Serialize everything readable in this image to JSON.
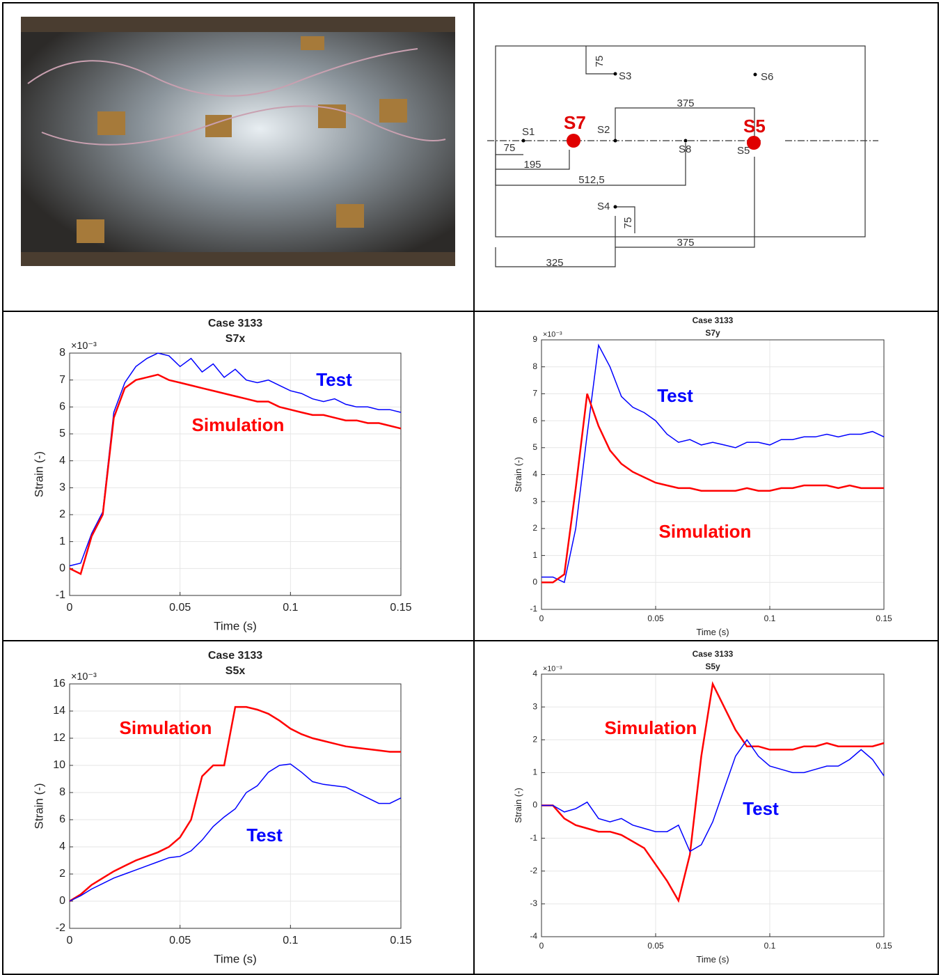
{
  "diagram": {
    "sensor_labels": [
      "S3",
      "S6",
      "S1",
      "S2",
      "S8",
      "S5",
      "S4"
    ],
    "highlighted": [
      "S7",
      "S5"
    ],
    "dimensions": [
      75,
      375,
      75,
      195,
      "512,5",
      75,
      375,
      325
    ]
  },
  "chart_data": [
    {
      "type": "line",
      "title": "Case 3133",
      "subtitle": "S7x",
      "x_label": "Time (s)",
      "y_label": "Strain (-)",
      "y_multiplier": "×10⁻³",
      "x": [
        0,
        0.005,
        0.01,
        0.015,
        0.02,
        0.025,
        0.03,
        0.035,
        0.04,
        0.045,
        0.05,
        0.055,
        0.06,
        0.065,
        0.07,
        0.075,
        0.08,
        0.085,
        0.09,
        0.095,
        0.1,
        0.105,
        0.11,
        0.115,
        0.12,
        0.125,
        0.13,
        0.135,
        0.14,
        0.145,
        0.15
      ],
      "series": [
        {
          "name": "Test",
          "color": "#0000ff",
          "values": [
            0.1,
            0.2,
            1.3,
            2.1,
            5.8,
            6.9,
            7.5,
            7.8,
            8.0,
            7.9,
            7.5,
            7.8,
            7.3,
            7.6,
            7.1,
            7.4,
            7.0,
            6.9,
            7.0,
            6.8,
            6.6,
            6.5,
            6.3,
            6.2,
            6.3,
            6.1,
            6.0,
            6.0,
            5.9,
            5.9,
            5.8
          ]
        },
        {
          "name": "Simulation",
          "color": "#ff0000",
          "values": [
            0.0,
            -0.2,
            1.2,
            2.0,
            5.6,
            6.7,
            7.0,
            7.1,
            7.2,
            7.0,
            6.9,
            6.8,
            6.7,
            6.6,
            6.5,
            6.4,
            6.3,
            6.2,
            6.2,
            6.0,
            5.9,
            5.8,
            5.7,
            5.7,
            5.6,
            5.5,
            5.5,
            5.4,
            5.4,
            5.3,
            5.2
          ]
        }
      ],
      "xlim": [
        0,
        0.15
      ],
      "xticks": [
        0,
        0.05,
        0.1,
        0.15
      ],
      "ylim": [
        -1,
        8
      ],
      "yticks": [
        -1,
        0,
        1,
        2,
        3,
        4,
        5,
        6,
        7,
        8
      ],
      "grid": true
    },
    {
      "type": "line",
      "title": "Case 3133",
      "subtitle": "S7y",
      "x_label": "Time (s)",
      "y_label": "Strain (-)",
      "y_multiplier": "×10⁻³",
      "x": [
        0,
        0.005,
        0.01,
        0.015,
        0.02,
        0.025,
        0.03,
        0.035,
        0.04,
        0.045,
        0.05,
        0.055,
        0.06,
        0.065,
        0.07,
        0.075,
        0.08,
        0.085,
        0.09,
        0.095,
        0.1,
        0.105,
        0.11,
        0.115,
        0.12,
        0.125,
        0.13,
        0.135,
        0.14,
        0.145,
        0.15
      ],
      "series": [
        {
          "name": "Test",
          "color": "#0000ff",
          "values": [
            0.2,
            0.2,
            0.0,
            2.0,
            5.5,
            8.8,
            8.0,
            6.9,
            6.5,
            6.3,
            6.0,
            5.5,
            5.2,
            5.3,
            5.1,
            5.2,
            5.1,
            5.0,
            5.2,
            5.2,
            5.1,
            5.3,
            5.3,
            5.4,
            5.4,
            5.5,
            5.4,
            5.5,
            5.5,
            5.6,
            5.4
          ]
        },
        {
          "name": "Simulation",
          "color": "#ff0000",
          "values": [
            0.0,
            0.0,
            0.3,
            3.5,
            7.0,
            5.8,
            4.9,
            4.4,
            4.1,
            3.9,
            3.7,
            3.6,
            3.5,
            3.5,
            3.4,
            3.4,
            3.4,
            3.4,
            3.5,
            3.4,
            3.4,
            3.5,
            3.5,
            3.6,
            3.6,
            3.6,
            3.5,
            3.6,
            3.5,
            3.5,
            3.5
          ]
        }
      ],
      "xlim": [
        0,
        0.15
      ],
      "xticks": [
        0,
        0.05,
        0.1,
        0.15
      ],
      "ylim": [
        -1,
        9
      ],
      "yticks": [
        -1,
        0,
        1,
        2,
        3,
        4,
        5,
        6,
        7,
        8,
        9
      ],
      "grid": true
    },
    {
      "type": "line",
      "title": "Case 3133",
      "subtitle": "S5x",
      "x_label": "Time (s)",
      "y_label": "Strain (-)",
      "y_multiplier": "×10⁻³",
      "x": [
        0,
        0.005,
        0.01,
        0.015,
        0.02,
        0.025,
        0.03,
        0.035,
        0.04,
        0.045,
        0.05,
        0.055,
        0.06,
        0.065,
        0.07,
        0.075,
        0.08,
        0.085,
        0.09,
        0.095,
        0.1,
        0.105,
        0.11,
        0.115,
        0.12,
        0.125,
        0.13,
        0.135,
        0.14,
        0.145,
        0.15
      ],
      "series": [
        {
          "name": "Simulation",
          "color": "#ff0000",
          "values": [
            0,
            0.5,
            1.2,
            1.7,
            2.2,
            2.6,
            3.0,
            3.3,
            3.6,
            4.0,
            4.7,
            6.0,
            9.2,
            10.0,
            10.0,
            14.3,
            14.3,
            14.1,
            13.8,
            13.3,
            12.7,
            12.3,
            12.0,
            11.8,
            11.6,
            11.4,
            11.3,
            11.2,
            11.1,
            11.0,
            11.0
          ]
        },
        {
          "name": "Test",
          "color": "#0000ff",
          "values": [
            0,
            0.4,
            0.9,
            1.3,
            1.7,
            2.0,
            2.3,
            2.6,
            2.9,
            3.2,
            3.3,
            3.7,
            4.5,
            5.5,
            6.2,
            6.8,
            8.0,
            8.5,
            9.5,
            10.0,
            10.1,
            9.5,
            8.8,
            8.6,
            8.5,
            8.4,
            8.0,
            7.6,
            7.2,
            7.2,
            7.6
          ]
        }
      ],
      "xlim": [
        0,
        0.15
      ],
      "xticks": [
        0,
        0.05,
        0.1,
        0.15
      ],
      "ylim": [
        -2,
        16
      ],
      "yticks": [
        -2,
        0,
        2,
        4,
        6,
        8,
        10,
        12,
        14,
        16
      ],
      "grid": true
    },
    {
      "type": "line",
      "title": "Case 3133",
      "subtitle": "S5y",
      "x_label": "Time (s)",
      "y_label": "Strain (-)",
      "y_multiplier": "×10⁻³",
      "x": [
        0,
        0.005,
        0.01,
        0.015,
        0.02,
        0.025,
        0.03,
        0.035,
        0.04,
        0.045,
        0.05,
        0.055,
        0.06,
        0.065,
        0.07,
        0.075,
        0.08,
        0.085,
        0.09,
        0.095,
        0.1,
        0.105,
        0.11,
        0.115,
        0.12,
        0.125,
        0.13,
        0.135,
        0.14,
        0.145,
        0.15
      ],
      "series": [
        {
          "name": "Simulation",
          "color": "#ff0000",
          "values": [
            0,
            0,
            -0.4,
            -0.6,
            -0.7,
            -0.8,
            -0.8,
            -0.9,
            -1.1,
            -1.3,
            -1.8,
            -2.3,
            -2.9,
            -1.5,
            1.5,
            3.7,
            3.0,
            2.3,
            1.8,
            1.8,
            1.7,
            1.7,
            1.7,
            1.8,
            1.8,
            1.9,
            1.8,
            1.8,
            1.8,
            1.8,
            1.9
          ]
        },
        {
          "name": "Test",
          "color": "#0000ff",
          "values": [
            0,
            0,
            -0.2,
            -0.1,
            0.1,
            -0.4,
            -0.5,
            -0.4,
            -0.6,
            -0.7,
            -0.8,
            -0.8,
            -0.6,
            -1.4,
            -1.2,
            -0.5,
            0.5,
            1.5,
            2.0,
            1.5,
            1.2,
            1.1,
            1.0,
            1.0,
            1.1,
            1.2,
            1.2,
            1.4,
            1.7,
            1.4,
            0.9
          ]
        }
      ],
      "xlim": [
        0,
        0.15
      ],
      "xticks": [
        0,
        0.05,
        0.1,
        0.15
      ],
      "ylim": [
        -4,
        4
      ],
      "yticks": [
        -4,
        -3,
        -2,
        -1,
        0,
        1,
        2,
        3,
        4
      ],
      "grid": true
    }
  ]
}
